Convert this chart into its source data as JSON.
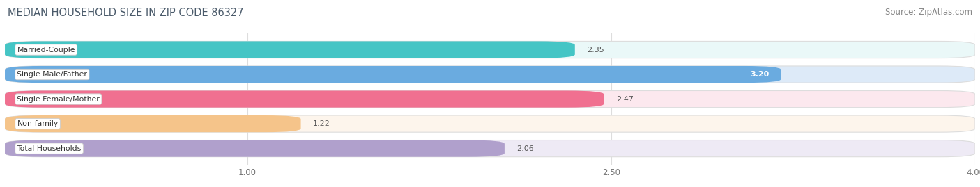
{
  "title": "MEDIAN HOUSEHOLD SIZE IN ZIP CODE 86327",
  "source": "Source: ZipAtlas.com",
  "categories": [
    "Married-Couple",
    "Single Male/Father",
    "Single Female/Mother",
    "Non-family",
    "Total Households"
  ],
  "values": [
    2.35,
    3.2,
    2.47,
    1.22,
    2.06
  ],
  "bar_colors": [
    "#45c5c5",
    "#6aabe0",
    "#f07090",
    "#f5c48a",
    "#b0a0cc"
  ],
  "bar_bg_colors": [
    "#eaf8f8",
    "#ddeaf8",
    "#fce8ee",
    "#fdf5ec",
    "#eeeaf5"
  ],
  "xlim": [
    0,
    4.0
  ],
  "xticks": [
    1.0,
    2.5,
    4.0
  ],
  "label_inside": [
    false,
    true,
    false,
    false,
    false
  ],
  "background_color": "#ffffff",
  "title_fontsize": 10.5,
  "source_fontsize": 8.5,
  "title_color": "#4a5a6a",
  "source_color": "#888888"
}
